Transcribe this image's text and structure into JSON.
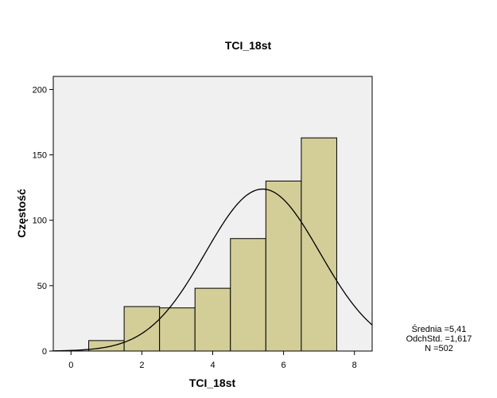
{
  "chart_data": {
    "type": "bar",
    "title": "TCI_18st",
    "xlabel": "TCI_18st",
    "ylabel": "Częstość",
    "xlim": [
      -0.5,
      8.5
    ],
    "ylim": [
      0,
      210
    ],
    "x_ticks": [
      0,
      2,
      4,
      6,
      8
    ],
    "y_ticks": [
      0,
      50,
      100,
      150,
      200
    ],
    "bins": [
      {
        "from": 0.5,
        "to": 1.5,
        "count": 8
      },
      {
        "from": 1.5,
        "to": 2.5,
        "count": 34
      },
      {
        "from": 2.5,
        "to": 3.5,
        "count": 33
      },
      {
        "from": 3.5,
        "to": 4.5,
        "count": 48
      },
      {
        "from": 4.5,
        "to": 5.5,
        "count": 86
      },
      {
        "from": 5.5,
        "to": 6.5,
        "count": 130
      },
      {
        "from": 6.5,
        "to": 7.5,
        "count": 163
      }
    ],
    "normal_curve": {
      "mean": 5.41,
      "sd": 1.617,
      "n": 502,
      "bin_width": 1
    },
    "colors": {
      "bar": "#d3ce98",
      "bar_edge": "#000000",
      "plot_bg": "#f0f0f0",
      "curve": "#000000"
    },
    "grid": false,
    "stats_labels": [
      "Średnia =5,41",
      "OdchStd. =1,617",
      "N =502"
    ]
  }
}
